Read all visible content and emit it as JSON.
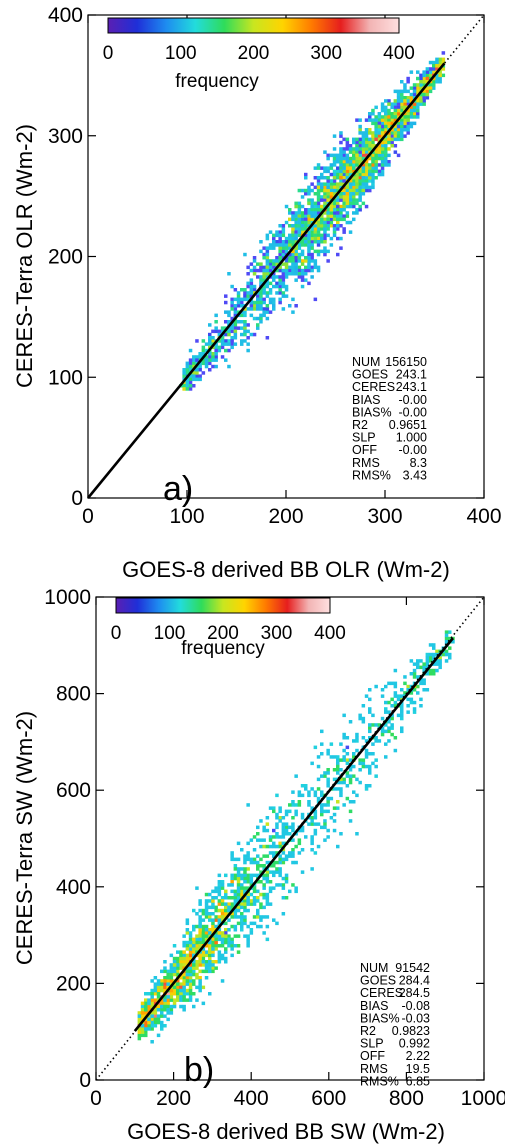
{
  "colors": {
    "colorbar_stops": [
      "#5a1fb3",
      "#1f2fd8",
      "#1e8cf0",
      "#22dcdc",
      "#2fdc5a",
      "#c8e620",
      "#ffd400",
      "#ff7a00",
      "#e61e1e",
      "#f2b4b4",
      "#ffe0e0"
    ],
    "density_low": "#7d46ff",
    "density_mid": "#22c6e8",
    "density_high": "#f4a8a8",
    "one_to_one_line": "#000000",
    "regression_line": "#000000"
  },
  "chart_data": [
    {
      "type": "heatmap",
      "panel_label": "a)",
      "xlabel": "GOES-8 derived BB OLR (Wm-2)",
      "ylabel": "CERES-Terra OLR (Wm-2)",
      "xlim": [
        0,
        400
      ],
      "ylim": [
        0,
        400
      ],
      "xticks": [
        "0",
        "100",
        "200",
        "300",
        "400"
      ],
      "yticks": [
        "0",
        "100",
        "200",
        "300",
        "400"
      ],
      "x_tick_values": [
        0,
        100,
        200,
        300,
        400
      ],
      "y_tick_values": [
        0,
        100,
        200,
        300,
        400
      ],
      "colorbar": {
        "label": "frequency",
        "min": 0,
        "max": 400,
        "ticks": [
          "0",
          "100",
          "200",
          "300",
          "400"
        ]
      },
      "regression": {
        "slope": 1.0,
        "intercept": 0.0,
        "x_range": [
          0,
          360
        ]
      },
      "distribution": {
        "x_min": 95,
        "x_max": 360,
        "x_peak": 270,
        "spread": 14
      },
      "stats": [
        {
          "label": "NUM",
          "value": "156150"
        },
        {
          "label": "GOES",
          "value": "243.1"
        },
        {
          "label": "CERES",
          "value": "243.1"
        },
        {
          "label": "BIAS",
          "value": "-0.00"
        },
        {
          "label": "BIAS%",
          "value": "-0.00"
        },
        {
          "label": "R2",
          "value": "0.9651"
        },
        {
          "label": "SLP",
          "value": "1.000"
        },
        {
          "label": "OFF",
          "value": "-0.00"
        },
        {
          "label": "RMS",
          "value": "8.3"
        },
        {
          "label": "RMS%",
          "value": "3.43"
        }
      ]
    },
    {
      "type": "heatmap",
      "panel_label": "b)",
      "xlabel": "GOES-8 derived BB SW (Wm-2)",
      "ylabel": "CERES-Terra SW (Wm-2)",
      "xlim": [
        0,
        1000
      ],
      "ylim": [
        0,
        1000
      ],
      "xticks": [
        "0",
        "200",
        "400",
        "600",
        "800",
        "1000"
      ],
      "yticks": [
        "0",
        "200",
        "400",
        "600",
        "800",
        "1000"
      ],
      "x_tick_values": [
        0,
        200,
        400,
        600,
        800,
        1000
      ],
      "y_tick_values": [
        0,
        200,
        400,
        600,
        800,
        1000
      ],
      "colorbar": {
        "label": "frequency",
        "min": 0,
        "max": 400,
        "ticks": [
          "0",
          "100",
          "200",
          "300",
          "400"
        ]
      },
      "regression": {
        "slope": 0.992,
        "intercept": 2.22,
        "x_range": [
          100,
          920
        ]
      },
      "distribution": {
        "x_min": 110,
        "x_max": 920,
        "x_peak": 220,
        "spread": 45
      },
      "stats": [
        {
          "label": "NUM",
          "value": "91542"
        },
        {
          "label": "GOES",
          "value": "284.4"
        },
        {
          "label": "CERES",
          "value": "284.5"
        },
        {
          "label": "BIAS",
          "value": "-0.08"
        },
        {
          "label": "BIAS%",
          "value": "-0.03"
        },
        {
          "label": "R2",
          "value": "0.9823"
        },
        {
          "label": "SLP",
          "value": "0.992"
        },
        {
          "label": "OFF",
          "value": "2.22"
        },
        {
          "label": "RMS",
          "value": "19.5"
        },
        {
          "label": "RMS%",
          "value": "6.85"
        }
      ]
    }
  ]
}
